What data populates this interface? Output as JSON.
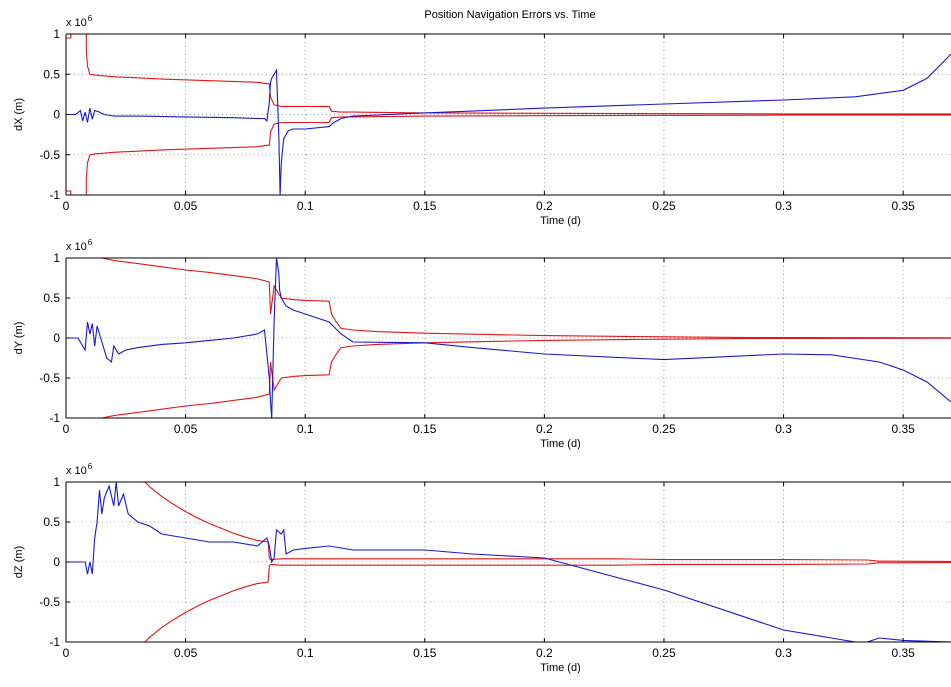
{
  "title": "Position Navigation Errors vs. Time",
  "colors": {
    "envelope": "#e01818",
    "error": "#1a1acc",
    "grid": "#8c8c8c"
  },
  "chart_data": [
    {
      "type": "line",
      "title": "Position Navigation Errors vs. Time",
      "xlabel": "Time (d)",
      "ylabel": "dX (m)",
      "y_exponent": "x 10",
      "y_exponent_power": "6",
      "xlim": [
        0,
        0.37
      ],
      "ylim": [
        -1,
        1
      ],
      "xticks": [
        "0",
        "0.05",
        "0.1",
        "0.15",
        "0.2",
        "0.25",
        "0.3",
        "0.35"
      ],
      "yticks": [
        "1",
        "0.5",
        "0",
        "-0.5",
        "-1"
      ],
      "grid": true,
      "series": [
        {
          "color": "#e01818",
          "x": [
            0,
            0.002,
            0.002,
            0.0085,
            0.0085,
            0.009,
            0.01,
            0.012,
            0.02,
            0.04,
            0.06,
            0.08,
            0.085,
            0.0855,
            0.087,
            0.09,
            0.095,
            0.1,
            0.11,
            0.111,
            0.115,
            0.12,
            0.15,
            0.2,
            0.26,
            0.3,
            0.37
          ],
          "y": [
            0.95,
            0.95,
            1.0,
            1.0,
            0.8,
            0.6,
            0.5,
            0.49,
            0.47,
            0.44,
            0.42,
            0.4,
            0.38,
            0.22,
            0.12,
            0.1,
            0.1,
            0.1,
            0.1,
            0.04,
            0.03,
            0.03,
            0.02,
            0.015,
            0.01,
            0.008,
            0.007
          ]
        },
        {
          "color": "#e01818",
          "x": [
            0,
            0.002,
            0.002,
            0.0085,
            0.0085,
            0.009,
            0.01,
            0.012,
            0.02,
            0.04,
            0.06,
            0.08,
            0.085,
            0.0855,
            0.087,
            0.09,
            0.095,
            0.1,
            0.11,
            0.111,
            0.115,
            0.12,
            0.15,
            0.2,
            0.26,
            0.3,
            0.37
          ],
          "y": [
            -0.95,
            -0.95,
            -1.0,
            -1.0,
            -0.8,
            -0.6,
            -0.5,
            -0.49,
            -0.47,
            -0.44,
            -0.42,
            -0.4,
            -0.38,
            -0.22,
            -0.12,
            -0.1,
            -0.1,
            -0.1,
            -0.1,
            -0.04,
            -0.03,
            -0.03,
            -0.02,
            -0.015,
            -0.01,
            -0.008,
            -0.007
          ]
        },
        {
          "color": "#1a1acc",
          "x": [
            0,
            0.004,
            0.006,
            0.007,
            0.008,
            0.009,
            0.01,
            0.011,
            0.012,
            0.014,
            0.016,
            0.02,
            0.03,
            0.05,
            0.07,
            0.08,
            0.083,
            0.084,
            0.085,
            0.0855,
            0.086,
            0.087,
            0.088,
            0.089,
            0.0895,
            0.09,
            0.091,
            0.093,
            0.095,
            0.1,
            0.11,
            0.112,
            0.115,
            0.12,
            0.15,
            0.2,
            0.25,
            0.3,
            0.33,
            0.35,
            0.36,
            0.37
          ],
          "y": [
            0.0,
            0.0,
            0.05,
            -0.08,
            0.03,
            -0.1,
            0.08,
            -0.06,
            0.05,
            0.03,
            0.0,
            -0.02,
            -0.02,
            -0.03,
            -0.04,
            -0.05,
            -0.05,
            -0.08,
            0.15,
            0.4,
            0.45,
            0.5,
            0.55,
            -0.3,
            -1.0,
            -0.6,
            -0.3,
            -0.2,
            -0.18,
            -0.18,
            -0.15,
            -0.1,
            -0.05,
            -0.02,
            0.02,
            0.08,
            0.13,
            0.18,
            0.22,
            0.3,
            0.45,
            0.75
          ]
        }
      ]
    },
    {
      "type": "line",
      "xlabel": "Time (d)",
      "ylabel": "dY (m)",
      "y_exponent": "x 10",
      "y_exponent_power": "6",
      "xlim": [
        0,
        0.37
      ],
      "ylim": [
        -1,
        1
      ],
      "xticks": [
        "0",
        "0.05",
        "0.1",
        "0.15",
        "0.2",
        "0.25",
        "0.3",
        "0.35"
      ],
      "yticks": [
        "1",
        "0.5",
        "0",
        "-0.5",
        "-1"
      ],
      "grid": true,
      "series": [
        {
          "color": "#e01818",
          "x": [
            0.015,
            0.02,
            0.03,
            0.04,
            0.05,
            0.06,
            0.07,
            0.08,
            0.085,
            0.0855,
            0.087,
            0.09,
            0.095,
            0.1,
            0.11,
            0.111,
            0.113,
            0.115,
            0.12,
            0.13,
            0.15,
            0.2,
            0.25,
            0.28,
            0.3,
            0.37
          ],
          "y": [
            1.0,
            0.97,
            0.93,
            0.89,
            0.85,
            0.82,
            0.78,
            0.74,
            0.7,
            0.3,
            0.65,
            0.5,
            0.48,
            0.47,
            0.46,
            0.3,
            0.2,
            0.12,
            0.1,
            0.08,
            0.06,
            0.03,
            0.015,
            0.008,
            0.005,
            0.003
          ]
        },
        {
          "color": "#e01818",
          "x": [
            0.015,
            0.02,
            0.03,
            0.04,
            0.05,
            0.06,
            0.07,
            0.08,
            0.085,
            0.0855,
            0.087,
            0.09,
            0.095,
            0.1,
            0.11,
            0.111,
            0.113,
            0.115,
            0.12,
            0.13,
            0.15,
            0.2,
            0.25,
            0.28,
            0.3,
            0.37
          ],
          "y": [
            -1.0,
            -0.97,
            -0.93,
            -0.89,
            -0.85,
            -0.82,
            -0.78,
            -0.74,
            -0.7,
            -0.3,
            -0.65,
            -0.5,
            -0.48,
            -0.47,
            -0.46,
            -0.3,
            -0.2,
            -0.12,
            -0.1,
            -0.08,
            -0.06,
            -0.03,
            -0.015,
            -0.008,
            -0.005,
            -0.003
          ]
        },
        {
          "color": "#1a1acc",
          "x": [
            0,
            0.005,
            0.008,
            0.009,
            0.01,
            0.011,
            0.012,
            0.013,
            0.015,
            0.017,
            0.019,
            0.02,
            0.022,
            0.025,
            0.03,
            0.04,
            0.05,
            0.06,
            0.07,
            0.08,
            0.083,
            0.084,
            0.085,
            0.0855,
            0.086,
            0.087,
            0.088,
            0.089,
            0.0893,
            0.09,
            0.092,
            0.095,
            0.1,
            0.11,
            0.115,
            0.12,
            0.15,
            0.17,
            0.2,
            0.25,
            0.3,
            0.32,
            0.34,
            0.35,
            0.36,
            0.37
          ],
          "y": [
            0.0,
            0.0,
            -0.15,
            0.2,
            0.05,
            0.18,
            -0.1,
            0.15,
            -0.05,
            -0.25,
            -0.3,
            -0.1,
            -0.2,
            -0.15,
            -0.12,
            -0.08,
            -0.06,
            -0.03,
            0.0,
            0.05,
            0.1,
            -0.2,
            -0.5,
            -0.8,
            -1.0,
            0.2,
            1.0,
            0.8,
            0.6,
            0.5,
            0.4,
            0.35,
            0.3,
            0.2,
            0.05,
            -0.05,
            -0.06,
            -0.12,
            -0.2,
            -0.27,
            -0.2,
            -0.21,
            -0.3,
            -0.4,
            -0.55,
            -0.8
          ]
        }
      ]
    },
    {
      "type": "line",
      "xlabel": "Time (d)",
      "ylabel": "dZ (m)",
      "y_exponent": "x 10",
      "y_exponent_power": "6",
      "xlim": [
        0,
        0.37
      ],
      "ylim": [
        -1,
        1
      ],
      "xticks": [
        "0",
        "0.05",
        "0.1",
        "0.15",
        "0.2",
        "0.25",
        "0.3",
        "0.35"
      ],
      "yticks": [
        "1",
        "0.5",
        "0",
        "-0.5",
        "-1"
      ],
      "grid": true,
      "series": [
        {
          "color": "#e01818",
          "x": [
            0.033,
            0.035,
            0.04,
            0.045,
            0.05,
            0.055,
            0.06,
            0.065,
            0.07,
            0.075,
            0.08,
            0.0845,
            0.085,
            0.0855,
            0.09,
            0.1,
            0.15,
            0.2,
            0.23,
            0.25,
            0.3,
            0.335,
            0.34,
            0.37
          ],
          "y": [
            1.0,
            0.94,
            0.82,
            0.72,
            0.63,
            0.55,
            0.48,
            0.42,
            0.36,
            0.31,
            0.27,
            0.25,
            0.05,
            0.03,
            0.04,
            0.04,
            0.04,
            0.04,
            0.04,
            0.03,
            0.03,
            0.025,
            0.01,
            0.008
          ]
        },
        {
          "color": "#e01818",
          "x": [
            0.033,
            0.035,
            0.04,
            0.045,
            0.05,
            0.055,
            0.06,
            0.065,
            0.07,
            0.075,
            0.08,
            0.0845,
            0.085,
            0.0855,
            0.09,
            0.1,
            0.15,
            0.2,
            0.23,
            0.25,
            0.3,
            0.335,
            0.34,
            0.37
          ],
          "y": [
            -1.0,
            -0.94,
            -0.82,
            -0.72,
            -0.63,
            -0.55,
            -0.48,
            -0.42,
            -0.36,
            -0.31,
            -0.27,
            -0.25,
            -0.05,
            -0.03,
            -0.04,
            -0.04,
            -0.04,
            -0.04,
            -0.04,
            -0.03,
            -0.03,
            -0.025,
            -0.01,
            -0.008
          ]
        },
        {
          "color": "#1a1acc",
          "x": [
            0,
            0.008,
            0.009,
            0.01,
            0.011,
            0.012,
            0.013,
            0.014,
            0.015,
            0.016,
            0.018,
            0.02,
            0.021,
            0.022,
            0.024,
            0.026,
            0.028,
            0.03,
            0.035,
            0.04,
            0.05,
            0.06,
            0.07,
            0.08,
            0.084,
            0.085,
            0.086,
            0.087,
            0.088,
            0.09,
            0.091,
            0.092,
            0.095,
            0.1,
            0.11,
            0.12,
            0.15,
            0.17,
            0.2,
            0.25,
            0.3,
            0.32,
            0.33,
            0.335,
            0.34,
            0.35,
            0.37
          ],
          "y": [
            0.0,
            0.0,
            -0.15,
            0.0,
            -0.15,
            0.3,
            0.5,
            0.9,
            0.6,
            0.8,
            0.95,
            0.7,
            1.0,
            0.7,
            0.85,
            0.6,
            0.55,
            0.5,
            0.45,
            0.35,
            0.3,
            0.25,
            0.25,
            0.2,
            0.3,
            0.2,
            0.0,
            0.05,
            0.4,
            0.35,
            0.4,
            0.1,
            0.15,
            0.17,
            0.2,
            0.15,
            0.15,
            0.1,
            0.05,
            -0.35,
            -0.85,
            -0.95,
            -1.0,
            -1.0,
            -0.95,
            -0.98,
            -1.0
          ]
        }
      ]
    }
  ]
}
